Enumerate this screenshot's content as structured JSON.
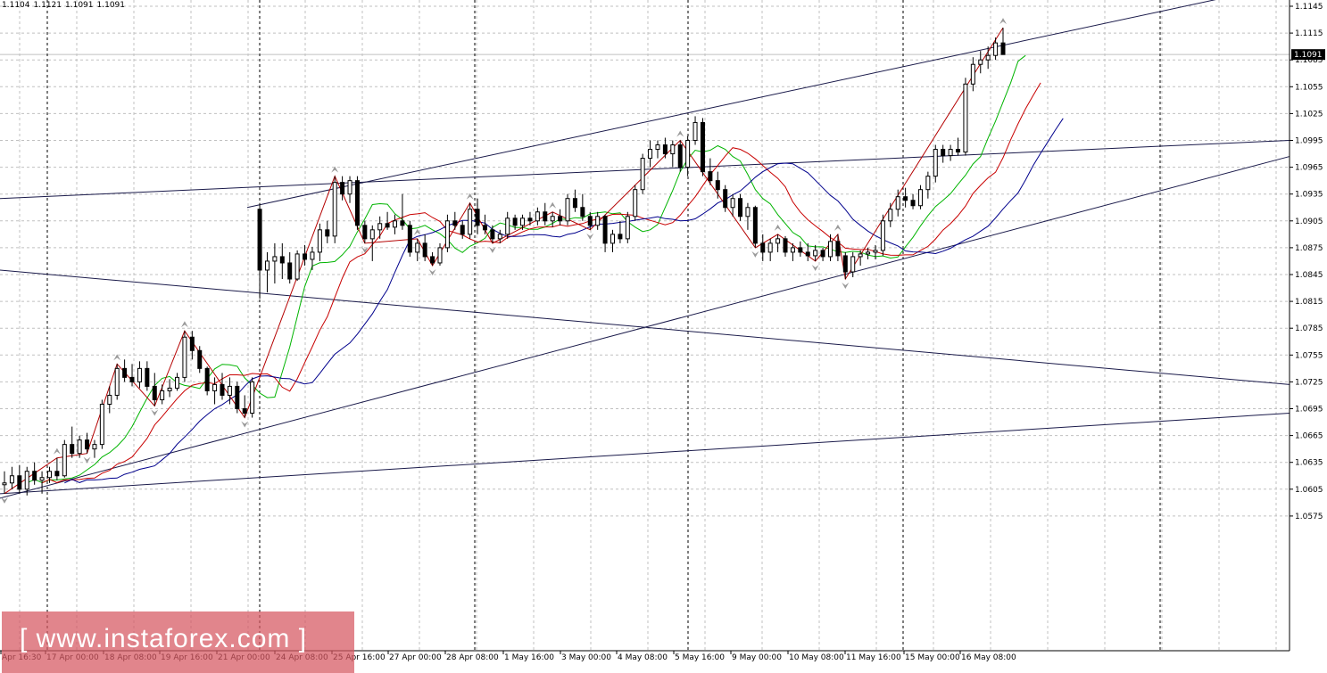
{
  "header": {
    "open": "1.1104",
    "high": "1.1121",
    "low": "1.1091",
    "close": "1.1091"
  },
  "current_price_label": "1.1091",
  "watermark": "[ www.instaforex.com ]",
  "colors": {
    "grid": "#c0c0c0",
    "session_divider": "#000000",
    "candle": "#000000",
    "trendline": "#1a1a4a",
    "ma_fast": "#00b400",
    "ma_mid": "#c80000",
    "ma_slow": "#00008c",
    "zigzag": "#b40000",
    "fractal": "#9a9a9a",
    "price_tag_bg": "#000000",
    "watermark_bg": "#d65660"
  },
  "chart_data": {
    "type": "candlestick",
    "symbol_timeframe": "",
    "ylim": [
      1.0565,
      1.115
    ],
    "y_ticks": [
      "1.1145",
      "1.1115",
      "1.1085",
      "1.1055",
      "1.1025",
      "1.0995",
      "1.0965",
      "1.0935",
      "1.0905",
      "1.0875",
      "1.0845",
      "1.0815",
      "1.0785",
      "1.0755",
      "1.0725",
      "1.0695",
      "1.0665",
      "1.0635",
      "1.0605",
      "1.0575"
    ],
    "x_ticks": [
      "Apr 16:30",
      "17 Apr 00:00",
      "18 Apr 08:00",
      "19 Apr 16:00",
      "21 Apr 00:00",
      "24 Apr 08:00",
      "25 Apr 16:00",
      "27 Apr 00:00",
      "28 Apr 08:00",
      "1 May 16:00",
      "3 May 00:00",
      "4 May 08:00",
      "5 May 16:00",
      "9 May 00:00",
      "10 May 08:00",
      "11 May 16:00",
      "15 May 00:00",
      "16 May 08:00"
    ],
    "candles": [
      [
        1.061,
        1.0625,
        1.06,
        1.0612
      ],
      [
        1.0612,
        1.063,
        1.0605,
        1.062
      ],
      [
        1.062,
        1.0632,
        1.06,
        1.0605
      ],
      [
        1.0605,
        1.063,
        1.0598,
        1.0625
      ],
      [
        1.0625,
        1.0635,
        1.061,
        1.0615
      ],
      [
        1.0615,
        1.0625,
        1.06,
        1.0618
      ],
      [
        1.0618,
        1.063,
        1.0612,
        1.0625
      ],
      [
        1.0625,
        1.064,
        1.0615,
        1.062
      ],
      [
        1.062,
        1.066,
        1.0618,
        1.0655
      ],
      [
        1.0655,
        1.0675,
        1.064,
        1.0645
      ],
      [
        1.0645,
        1.0665,
        1.064,
        1.066
      ],
      [
        1.066,
        1.0668,
        1.0645,
        1.065
      ],
      [
        1.065,
        1.066,
        1.064,
        1.0655
      ],
      [
        1.0655,
        1.0705,
        1.065,
        1.07
      ],
      [
        1.07,
        1.072,
        1.069,
        1.071
      ],
      [
        1.071,
        1.0745,
        1.0705,
        1.074
      ],
      [
        1.074,
        1.075,
        1.0725,
        1.073
      ],
      [
        1.073,
        1.0745,
        1.072,
        1.0725
      ],
      [
        1.0725,
        1.0748,
        1.0718,
        1.074
      ],
      [
        1.074,
        1.0748,
        1.0715,
        1.072
      ],
      [
        1.072,
        1.0735,
        1.0698,
        1.0705
      ],
      [
        1.0705,
        1.0722,
        1.07,
        1.0715
      ],
      [
        1.0715,
        1.0728,
        1.0708,
        1.0718
      ],
      [
        1.0718,
        1.0735,
        1.0715,
        1.073
      ],
      [
        1.073,
        1.0782,
        1.0725,
        1.0775
      ],
      [
        1.0775,
        1.0782,
        1.075,
        1.076
      ],
      [
        1.076,
        1.0765,
        1.0735,
        1.074
      ],
      [
        1.074,
        1.0742,
        1.071,
        1.0715
      ],
      [
        1.0715,
        1.073,
        1.07,
        1.0722
      ],
      [
        1.0722,
        1.0735,
        1.0705,
        1.071
      ],
      [
        1.071,
        1.073,
        1.07,
        1.072
      ],
      [
        1.072,
        1.0725,
        1.069,
        1.0695
      ],
      [
        1.0695,
        1.071,
        1.0685,
        1.069
      ],
      [
        1.069,
        1.073,
        1.0685,
        1.0725
      ],
      [
        1.0918,
        1.0925,
        1.0818,
        1.085
      ],
      [
        1.085,
        1.087,
        1.0825,
        1.086
      ],
      [
        1.086,
        1.088,
        1.0835,
        1.0865
      ],
      [
        1.0865,
        1.088,
        1.084,
        1.0858
      ],
      [
        1.0858,
        1.087,
        1.0835,
        1.084
      ],
      [
        1.084,
        1.0872,
        1.0838,
        1.0868
      ],
      [
        1.0868,
        1.0878,
        1.0855,
        1.0862
      ],
      [
        1.0862,
        1.0876,
        1.085,
        1.087
      ],
      [
        1.087,
        1.0902,
        1.086,
        1.0895
      ],
      [
        1.0895,
        1.0905,
        1.088,
        1.0888
      ],
      [
        1.0888,
        1.0955,
        1.088,
        1.0948
      ],
      [
        1.0948,
        1.0955,
        1.0928,
        1.0935
      ],
      [
        1.0935,
        1.0955,
        1.0925,
        1.095
      ],
      [
        1.095,
        1.0955,
        1.0895,
        1.09
      ],
      [
        1.09,
        1.0905,
        1.088,
        1.0885
      ],
      [
        1.0885,
        1.09,
        1.086,
        1.0895
      ],
      [
        1.0895,
        1.091,
        1.0885,
        1.0902
      ],
      [
        1.0902,
        1.0915,
        1.0895,
        1.0898
      ],
      [
        1.0898,
        1.0912,
        1.089,
        1.0905
      ],
      [
        1.0905,
        1.0935,
        1.0895,
        1.09
      ],
      [
        1.09,
        1.0905,
        1.0865,
        1.087
      ],
      [
        1.087,
        1.0885,
        1.086,
        1.088
      ],
      [
        1.088,
        1.089,
        1.086,
        1.0865
      ],
      [
        1.0865,
        1.087,
        1.0855,
        1.0858
      ],
      [
        1.0858,
        1.088,
        1.0855,
        1.0875
      ],
      [
        1.0875,
        1.0912,
        1.087,
        1.0905
      ],
      [
        1.0905,
        1.0915,
        1.0895,
        1.09
      ],
      [
        1.09,
        1.0905,
        1.0885,
        1.089
      ],
      [
        1.089,
        1.0925,
        1.0885,
        1.0918
      ],
      [
        1.0918,
        1.093,
        1.089,
        1.09
      ],
      [
        1.09,
        1.0912,
        1.089,
        1.0895
      ],
      [
        1.0895,
        1.09,
        1.088,
        1.0885
      ],
      [
        1.0885,
        1.0895,
        1.088,
        1.089
      ],
      [
        1.089,
        1.0915,
        1.0885,
        1.0908
      ],
      [
        1.0908,
        1.0912,
        1.0895,
        1.09
      ],
      [
        1.09,
        1.0912,
        1.0895,
        1.0908
      ],
      [
        1.0908,
        1.0915,
        1.09,
        1.0905
      ],
      [
        1.0905,
        1.092,
        1.09,
        1.0915
      ],
      [
        1.0915,
        1.0925,
        1.09,
        1.0905
      ],
      [
        1.0905,
        1.0915,
        1.0898,
        1.091
      ],
      [
        1.091,
        1.0918,
        1.09,
        1.0905
      ],
      [
        1.0905,
        1.0935,
        1.09,
        1.093
      ],
      [
        1.093,
        1.094,
        1.0915,
        1.092
      ],
      [
        1.092,
        1.0935,
        1.0905,
        1.091
      ],
      [
        1.091,
        1.0915,
        1.0895,
        1.09
      ],
      [
        1.09,
        1.0915,
        1.0895,
        1.091
      ],
      [
        1.091,
        1.0912,
        1.087,
        1.088
      ],
      [
        1.088,
        1.0895,
        1.087,
        1.089
      ],
      [
        1.089,
        1.0905,
        1.088,
        1.0885
      ],
      [
        1.0885,
        1.0915,
        1.088,
        1.091
      ],
      [
        1.091,
        1.0945,
        1.0905,
        1.094
      ],
      [
        1.094,
        1.098,
        1.0935,
        1.0975
      ],
      [
        1.0975,
        1.0995,
        1.0965,
        1.0985
      ],
      [
        1.0985,
        1.0995,
        1.0975,
        1.099
      ],
      [
        1.099,
        1.0998,
        1.0975,
        1.098
      ],
      [
        1.098,
        1.0995,
        1.0965,
        1.099
      ],
      [
        1.099,
        1.0995,
        1.096,
        1.0965
      ],
      [
        1.0965,
        1.1,
        1.0955,
        1.0995
      ],
      [
        1.0995,
        1.1022,
        1.099,
        1.1015
      ],
      [
        1.1015,
        1.102,
        1.0955,
        1.096
      ],
      [
        1.096,
        1.0975,
        1.0945,
        1.095
      ],
      [
        1.095,
        1.096,
        1.093,
        1.094
      ],
      [
        1.094,
        1.0945,
        1.0915,
        1.092
      ],
      [
        1.092,
        1.0935,
        1.091,
        1.093
      ],
      [
        1.093,
        1.0935,
        1.0905,
        1.091
      ],
      [
        1.091,
        1.0925,
        1.0895,
        1.092
      ],
      [
        1.092,
        1.0922,
        1.0875,
        1.088
      ],
      [
        1.088,
        1.089,
        1.086,
        1.087
      ],
      [
        1.087,
        1.0885,
        1.086,
        1.088
      ],
      [
        1.088,
        1.089,
        1.087,
        1.0885
      ],
      [
        1.0885,
        1.0888,
        1.0865,
        1.087
      ],
      [
        1.087,
        1.088,
        1.086,
        1.0875
      ],
      [
        1.0875,
        1.0882,
        1.0865,
        1.087
      ],
      [
        1.087,
        1.088,
        1.086,
        1.0866
      ],
      [
        1.0866,
        1.0878,
        1.086,
        1.0872
      ],
      [
        1.0872,
        1.0875,
        1.086,
        1.0865
      ],
      [
        1.0865,
        1.089,
        1.086,
        1.0882
      ],
      [
        1.0882,
        1.089,
        1.086,
        1.0866
      ],
      [
        1.0866,
        1.087,
        1.084,
        1.0848
      ],
      [
        1.0848,
        1.087,
        1.0842,
        1.0865
      ],
      [
        1.0865,
        1.0872,
        1.0855,
        1.0868
      ],
      [
        1.0868,
        1.0875,
        1.0862,
        1.087
      ],
      [
        1.087,
        1.0878,
        1.0862,
        1.0872
      ],
      [
        1.0872,
        1.0912,
        1.0866,
        1.0905
      ],
      [
        1.0905,
        1.0925,
        1.0898,
        1.0918
      ],
      [
        1.0918,
        1.094,
        1.091,
        1.0932
      ],
      [
        1.0932,
        1.0942,
        1.092,
        1.0928
      ],
      [
        1.0928,
        1.0935,
        1.0918,
        1.0922
      ],
      [
        1.0922,
        1.0945,
        1.0918,
        1.094
      ],
      [
        1.094,
        1.096,
        1.093,
        1.0955
      ],
      [
        1.0955,
        1.099,
        1.0948,
        1.0985
      ],
      [
        1.0985,
        1.099,
        1.097,
        1.0978
      ],
      [
        1.0978,
        1.099,
        1.0972,
        1.0985
      ],
      [
        1.0985,
        1.0998,
        1.0978,
        1.0982
      ],
      [
        1.0982,
        1.1065,
        1.0978,
        1.1058
      ],
      [
        1.1058,
        1.1088,
        1.105,
        1.108
      ],
      [
        1.108,
        1.1095,
        1.107,
        1.1085
      ],
      [
        1.1085,
        1.11,
        1.1075,
        1.109
      ],
      [
        1.109,
        1.111,
        1.1085,
        1.1104
      ],
      [
        1.1104,
        1.1121,
        1.1091,
        1.1091
      ]
    ]
  }
}
